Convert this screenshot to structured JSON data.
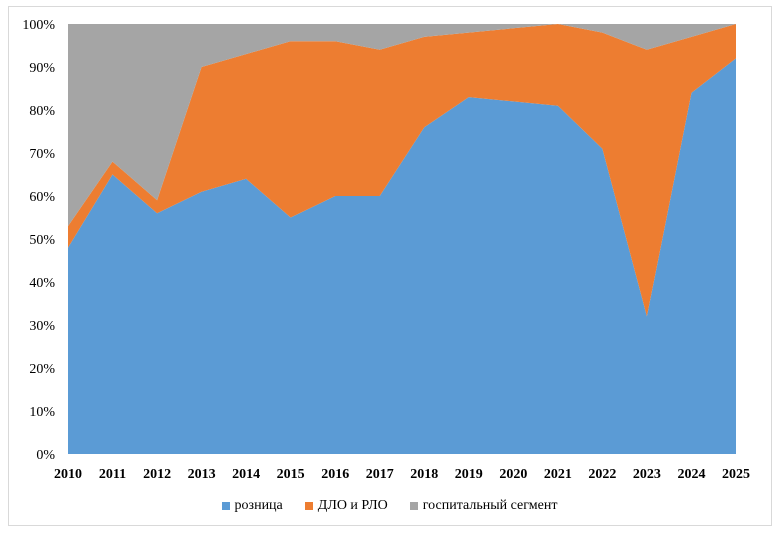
{
  "chart_data": {
    "type": "area",
    "stacked": true,
    "normalized": true,
    "x": [
      "2010",
      "2011",
      "2012",
      "2013",
      "2014",
      "2015",
      "2016",
      "2017",
      "2018",
      "2019",
      "2020",
      "2021",
      "2022",
      "2023",
      "2024",
      "2025"
    ],
    "y_ticks": [
      "0%",
      "10%",
      "20%",
      "30%",
      "40%",
      "50%",
      "60%",
      "70%",
      "80%",
      "90%",
      "100%"
    ],
    "ylim": [
      0,
      100
    ],
    "legend_position": "bottom",
    "series": [
      {
        "name": "розница",
        "color": "#5b9bd5",
        "values": [
          48,
          65,
          56,
          61,
          64,
          55,
          60,
          60,
          76,
          83,
          82,
          81,
          71,
          32,
          84,
          92
        ]
      },
      {
        "name": "ДЛО и РЛО",
        "color": "#ed7d31",
        "values": [
          5,
          3,
          3,
          29,
          29,
          41,
          36,
          34,
          21,
          15,
          17,
          19,
          27,
          62,
          13,
          8
        ]
      },
      {
        "name": "госпитальный сегмент",
        "color": "#a5a5a5",
        "values": [
          47,
          32,
          41,
          10,
          7,
          4,
          4,
          6,
          3,
          2,
          1,
          0,
          2,
          6,
          3,
          0
        ]
      }
    ]
  }
}
